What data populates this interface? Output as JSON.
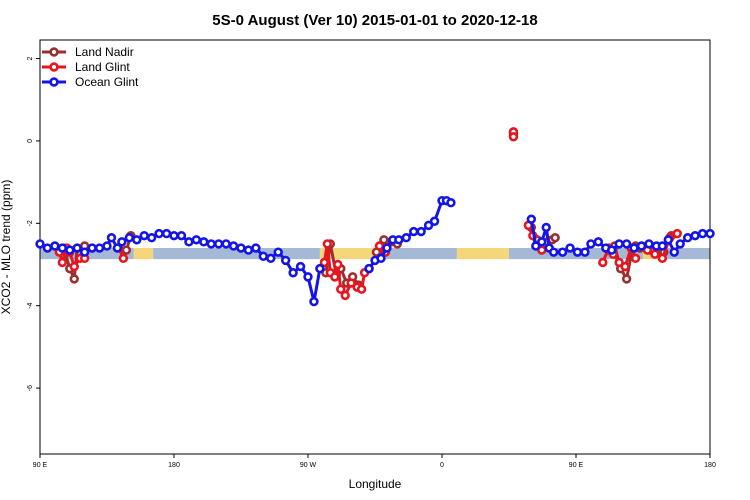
{
  "chart_data": {
    "type": "line",
    "title": "5S-0 August (Ver 10)   2015-01-01 to 2020-12-18",
    "xlabel": "Longitude",
    "ylabel": "XCO2 - MLO trend (ppm)",
    "x_ticks": [
      {
        "pos": 90,
        "label": "90 E"
      },
      {
        "pos": 180,
        "label": "180"
      },
      {
        "pos": 270,
        "label": "90 W"
      },
      {
        "pos": 360,
        "label": "0"
      },
      {
        "pos": 450,
        "label": "90 E"
      },
      {
        "pos": 540,
        "label": "180"
      }
    ],
    "y_ticks": [
      {
        "pos": 2,
        "label": "2"
      },
      {
        "pos": 0,
        "label": "0"
      },
      {
        "pos": -2,
        "label": "-2"
      },
      {
        "pos": -4,
        "label": "-4"
      },
      {
        "pos": -6,
        "label": "-6"
      }
    ],
    "xlim": [
      90,
      540
    ],
    "ylim": [
      -7.6,
      2.45
    ],
    "band": {
      "y_range": [
        -2.87,
        -2.6
      ],
      "segments": [
        {
          "x": [
            90,
            153
          ],
          "surface": "ocean"
        },
        {
          "x": [
            153,
            166
          ],
          "surface": "land"
        },
        {
          "x": [
            166,
            278
          ],
          "surface": "ocean"
        },
        {
          "x": [
            278,
            319
          ],
          "surface": "land"
        },
        {
          "x": [
            319,
            370
          ],
          "surface": "ocean"
        },
        {
          "x": [
            370,
            405
          ],
          "surface": "land"
        },
        {
          "x": [
            405,
            495
          ],
          "surface": "ocean"
        },
        {
          "x": [
            495,
            505
          ],
          "surface": "land"
        },
        {
          "x": [
            505,
            540
          ],
          "surface": "ocean"
        }
      ]
    },
    "legend_position": "top-left",
    "series": [
      {
        "name": "Land Nadir",
        "color": "#9b2f2f",
        "segments": [
          {
            "x": [
              103,
              106,
              110,
              113,
              115,
              120,
              125
            ],
            "y": [
              -2.65,
              -2.6,
              -3.1,
              -3.35,
              -2.6,
              -2.55,
              -2.6
            ]
          },
          {
            "x": [
              148,
              151
            ],
            "y": [
              -2.65,
              -2.3
            ]
          },
          {
            "x": [
              282,
              285,
              289,
              292,
              296,
              300,
              304
            ],
            "y": [
              -3.2,
              -2.5,
              -3.25,
              -3.1,
              -3.45,
              -3.3,
              -3.5
            ]
          },
          {
            "x": [
              316,
              321,
              326,
              330
            ],
            "y": [
              -2.7,
              -2.4,
              -2.45,
              -2.5
            ]
          },
          {
            "x": [
              408,
              408
            ],
            "y": [
              0.2,
              0.15
            ]
          },
          {
            "x": [
              420,
              424,
              428,
              431,
              434,
              436
            ],
            "y": [
              -2.1,
              -2.4,
              -2.5,
              -2.45,
              -2.4,
              -2.35
            ]
          },
          {
            "x": [
              472,
              476,
              480,
              484,
              488
            ],
            "y": [
              -2.65,
              -2.55,
              -3.1,
              -3.35,
              -2.6
            ]
          },
          {
            "x": [
              490,
              493,
              500,
              505,
              509,
              514
            ],
            "y": [
              -2.55,
              -2.6,
              -2.65,
              -2.6,
              -2.7,
              -2.3
            ]
          }
        ]
      },
      {
        "name": "Land Glint",
        "color": "#e8141e",
        "segments": [
          {
            "x": [
              103,
              105,
              108,
              110,
              113,
              117,
              120
            ],
            "y": [
              -2.7,
              -2.95,
              -2.6,
              -2.7,
              -3.05,
              -2.85,
              -2.85
            ]
          },
          {
            "x": [
              143,
              146
            ],
            "y": [
              -2.6,
              -2.85
            ]
          },
          {
            "x": [
              281,
              283,
              285,
              288,
              290,
              292,
              295,
              299,
              303,
              306,
              308,
              311
            ],
            "y": [
              -2.95,
              -2.5,
              -3.2,
              -3.3,
              -3.0,
              -3.6,
              -3.75,
              -3.45,
              -3.55,
              -3.6,
              -3.2,
              -3.1
            ]
          },
          {
            "x": [
              318,
              322
            ],
            "y": [
              -2.55,
              -2.7
            ]
          },
          {
            "x": [
              408,
              408
            ],
            "y": [
              0.22,
              0.1
            ]
          },
          {
            "x": [
              418,
              421,
              424,
              427
            ],
            "y": [
              -2.05,
              -2.3,
              -2.55,
              -2.65
            ]
          },
          {
            "x": [
              468,
              472,
              475,
              479,
              483,
              487,
              490
            ],
            "y": [
              -2.95,
              -2.6,
              -2.75,
              -2.95,
              -3.05,
              -2.6,
              -2.85
            ]
          },
          {
            "x": [
              498,
              503,
              508,
              513,
              518
            ],
            "y": [
              -2.65,
              -2.75,
              -2.85,
              -2.35,
              -2.25
            ]
          }
        ]
      },
      {
        "name": "Ocean Glint",
        "color": "#1414e6",
        "segments": [
          {
            "x": [
              90,
              95,
              100,
              105,
              110,
              115,
              120,
              125,
              130,
              135,
              138,
              142,
              145,
              150,
              155,
              160,
              165,
              170,
              175,
              180,
              185,
              190,
              195,
              200,
              205,
              210,
              215,
              220,
              225,
              230,
              235,
              240,
              245,
              250,
              255,
              260,
              265,
              270,
              274,
              278
            ],
            "y": [
              -2.5,
              -2.6,
              -2.55,
              -2.6,
              -2.65,
              -2.6,
              -2.7,
              -2.6,
              -2.6,
              -2.55,
              -2.35,
              -2.6,
              -2.45,
              -2.35,
              -2.4,
              -2.3,
              -2.35,
              -2.25,
              -2.25,
              -2.3,
              -2.3,
              -2.45,
              -2.4,
              -2.45,
              -2.5,
              -2.5,
              -2.5,
              -2.55,
              -2.6,
              -2.65,
              -2.6,
              -2.8,
              -2.85,
              -2.7,
              -2.9,
              -3.2,
              -3.05,
              -3.3,
              -3.9,
              -3.1
            ]
          },
          {
            "x": [
              311,
              315,
              319,
              323,
              327,
              331,
              336,
              341,
              346,
              351,
              355,
              360,
              363,
              366
            ],
            "y": [
              -3.1,
              -2.9,
              -2.85,
              -2.6,
              -2.4,
              -2.4,
              -2.35,
              -2.2,
              -2.2,
              -2.05,
              -1.95,
              -1.45,
              -1.45,
              -1.5
            ]
          },
          {
            "x": [
              420,
              423,
              427,
              430,
              432,
              435,
              441,
              446,
              451,
              456,
              460,
              465,
              470,
              474,
              479,
              484,
              489,
              494,
              499,
              504,
              508,
              512,
              516,
              520,
              525,
              530,
              535,
              540
            ],
            "y": [
              -1.9,
              -2.55,
              -2.45,
              -2.1,
              -2.6,
              -2.7,
              -2.7,
              -2.6,
              -2.7,
              -2.7,
              -2.5,
              -2.45,
              -2.6,
              -2.65,
              -2.5,
              -2.5,
              -2.6,
              -2.55,
              -2.5,
              -2.55,
              -2.55,
              -2.4,
              -2.7,
              -2.5,
              -2.35,
              -2.3,
              -2.25,
              -2.25
            ]
          }
        ]
      }
    ]
  }
}
